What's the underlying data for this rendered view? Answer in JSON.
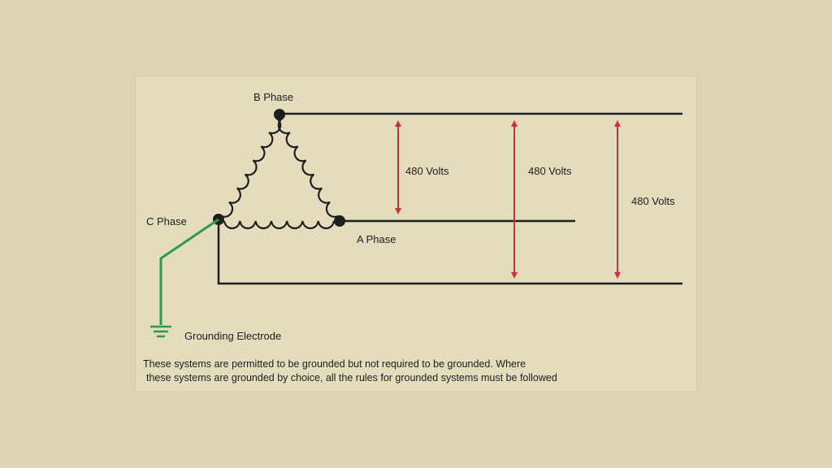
{
  "labels": {
    "b_phase": "B Phase",
    "a_phase": "A Phase",
    "c_phase": "C Phase",
    "grounding": "Grounding Electrode"
  },
  "voltages": [
    {
      "value": "480 Volts"
    },
    {
      "value": "480 Volts"
    },
    {
      "value": "480 Volts"
    }
  ],
  "note": {
    "line1": "These systems are permitted to be grounded but not required to be grounded. Where",
    "line2": "these systems are grounded by choice, all the rules for grounded systems must be followed"
  },
  "colors": {
    "background": "#ddd6b4",
    "wire": "#1e1e1e",
    "arrow": "#c8323a",
    "ground": "#2e9a4a"
  }
}
